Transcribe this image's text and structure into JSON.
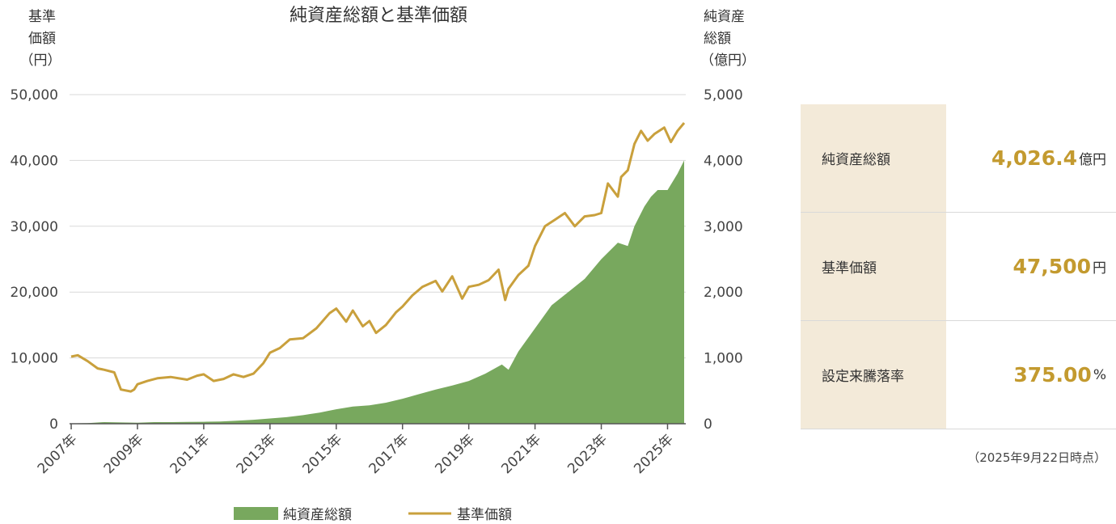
{
  "chart_data": {
    "type": "area+line",
    "title": "純資産総額と基準価額",
    "left_axis_label": [
      "基準",
      "価額",
      "（円）"
    ],
    "right_axis_label": [
      "純資産",
      "総額",
      "（億円）"
    ],
    "left_ticks": [
      "50,000",
      "40,000",
      "30,000",
      "20,000",
      "10,000",
      "0"
    ],
    "right_ticks": [
      "5,000",
      "4,000",
      "3,000",
      "2,000",
      "1,000",
      "0"
    ],
    "left_ylim": [
      0,
      50000
    ],
    "right_ylim": [
      0,
      5000
    ],
    "grid": true,
    "x_tick_labels": [
      "2007年",
      "2009年",
      "2011年",
      "2013年",
      "2015年",
      "2017年",
      "2019年",
      "2021年",
      "2023年",
      "2025年"
    ],
    "x_tick_years": [
      2007,
      2009,
      2011,
      2013,
      2015,
      2017,
      2019,
      2021,
      2023,
      2025
    ],
    "xlim": [
      2006.95,
      2025.55
    ],
    "series": [
      {
        "name": "純資産総額",
        "type": "area",
        "axis": "right",
        "color": "#78a85e",
        "x": [
          2007.0,
          2007.5,
          2008.0,
          2008.5,
          2009.0,
          2009.5,
          2010.0,
          2010.5,
          2011.0,
          2011.5,
          2012.0,
          2012.5,
          2013.0,
          2013.5,
          2014.0,
          2014.5,
          2015.0,
          2015.5,
          2016.0,
          2016.5,
          2017.0,
          2017.5,
          2018.0,
          2018.5,
          2019.0,
          2019.5,
          2020.0,
          2020.2,
          2020.5,
          2021.0,
          2021.5,
          2022.0,
          2022.5,
          2023.0,
          2023.5,
          2023.8,
          2024.0,
          2024.3,
          2024.5,
          2024.7,
          2025.0,
          2025.3,
          2025.5
        ],
        "y": [
          5,
          10,
          25,
          20,
          15,
          25,
          25,
          28,
          30,
          35,
          45,
          60,
          80,
          100,
          130,
          170,
          220,
          260,
          280,
          320,
          380,
          450,
          520,
          580,
          650,
          760,
          900,
          820,
          1100,
          1450,
          1800,
          2000,
          2200,
          2500,
          2750,
          2700,
          3000,
          3300,
          3450,
          3550,
          3550,
          3800,
          4000
        ]
      },
      {
        "name": "基準価額",
        "type": "line",
        "axis": "left",
        "color": "#c9a03c",
        "x": [
          2007.0,
          2007.2,
          2007.5,
          2007.8,
          2008.0,
          2008.3,
          2008.5,
          2008.8,
          2008.9,
          2009.0,
          2009.3,
          2009.6,
          2010.0,
          2010.5,
          2010.8,
          2011.0,
          2011.3,
          2011.6,
          2011.9,
          2012.2,
          2012.5,
          2012.8,
          2013.0,
          2013.3,
          2013.6,
          2014.0,
          2014.4,
          2014.8,
          2015.0,
          2015.3,
          2015.5,
          2015.8,
          2016.0,
          2016.2,
          2016.5,
          2016.8,
          2017.0,
          2017.3,
          2017.6,
          2018.0,
          2018.2,
          2018.5,
          2018.8,
          2019.0,
          2019.3,
          2019.6,
          2019.9,
          2020.1,
          2020.2,
          2020.5,
          2020.8,
          2021.0,
          2021.3,
          2021.6,
          2021.9,
          2022.2,
          2022.5,
          2022.8,
          2023.0,
          2023.2,
          2023.5,
          2023.6,
          2023.8,
          2024.0,
          2024.2,
          2024.4,
          2024.6,
          2024.9,
          2025.1,
          2025.3,
          2025.5
        ],
        "y": [
          10200,
          10400,
          9500,
          8400,
          8200,
          7800,
          5200,
          4900,
          5200,
          6000,
          6500,
          6900,
          7100,
          6700,
          7300,
          7500,
          6500,
          6800,
          7500,
          7100,
          7600,
          9200,
          10800,
          11500,
          12800,
          13000,
          14500,
          16800,
          17500,
          15500,
          17200,
          14800,
          15600,
          13800,
          15000,
          16900,
          17800,
          19500,
          20800,
          21700,
          20100,
          22400,
          19000,
          20800,
          21100,
          21800,
          23400,
          18800,
          20500,
          22600,
          24000,
          27000,
          30000,
          31000,
          32000,
          30000,
          31500,
          31700,
          32000,
          36500,
          34500,
          37500,
          38500,
          42500,
          44500,
          43000,
          44000,
          45000,
          42800,
          44500,
          45700
        ]
      }
    ],
    "legend": [
      "純資産総額",
      "基準価額"
    ],
    "legend_position": "bottom"
  },
  "summary": {
    "rows": [
      {
        "label": "純資産総額",
        "value": "4,026.4",
        "unit": "億円"
      },
      {
        "label": "基準価額",
        "value": "47,500",
        "unit": "円"
      },
      {
        "label": "設定来騰落率",
        "value": "375.00",
        "unit": "%"
      }
    ],
    "as_of": "（2025年9月22日時点）"
  }
}
